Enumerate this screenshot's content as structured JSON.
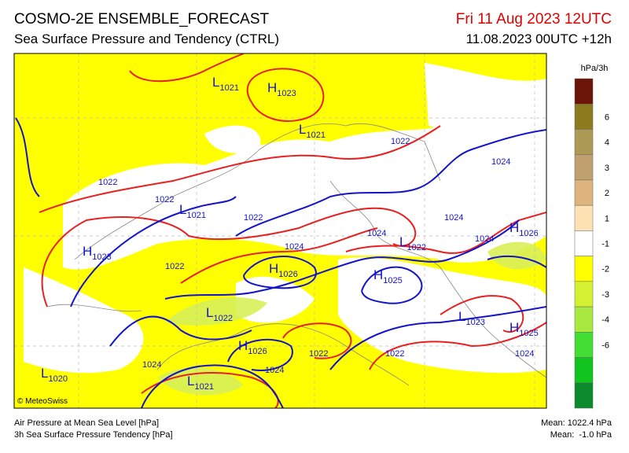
{
  "header": {
    "title": "COSMO-2E ENSEMBLE_FORECAST",
    "subtitle": "Sea Surface Pressure and Tendency (CTRL)",
    "valid_time": "Fri 11 Aug 2023 12UTC",
    "run_time": "11.08.2023 00UTC +12h"
  },
  "map": {
    "credit": "© MeteoSwiss",
    "labels": [
      {
        "symbol": "L",
        "value": "1021"
      },
      {
        "symbol": "H",
        "value": "1023"
      },
      {
        "symbol": "L",
        "value": "1021"
      },
      {
        "value": "1022"
      },
      {
        "value": "1024"
      },
      {
        "value": "1022"
      },
      {
        "value": "1022"
      },
      {
        "symbol": "L",
        "value": "1021"
      },
      {
        "value": "1022"
      },
      {
        "value": "1024"
      },
      {
        "symbol": "H",
        "value": "1026"
      },
      {
        "value": "1024"
      },
      {
        "value": "1024"
      },
      {
        "symbol": "H",
        "value": "1023"
      },
      {
        "symbol": "L",
        "value": "1022"
      },
      {
        "value": "1024"
      },
      {
        "value": "1022"
      },
      {
        "symbol": "H",
        "value": "1026"
      },
      {
        "symbol": "H",
        "value": "1025"
      },
      {
        "symbol": "L",
        "value": "1022"
      },
      {
        "symbol": "L",
        "value": "1023"
      },
      {
        "symbol": "H",
        "value": "1025"
      },
      {
        "symbol": "H",
        "value": "1026"
      },
      {
        "value": "1022"
      },
      {
        "value": "1022"
      },
      {
        "value": "1024"
      },
      {
        "value": "1024"
      },
      {
        "value": "1024"
      },
      {
        "symbol": "L",
        "value": "1020"
      },
      {
        "symbol": "L",
        "value": "1021"
      }
    ]
  },
  "legend": {
    "unit": "hPa/3h",
    "ticks": [
      6,
      4,
      3,
      2,
      1,
      -1,
      -2,
      -3,
      -4,
      -6
    ],
    "colors": [
      "#6b1408",
      "#8c7a1e",
      "#ad9a55",
      "#bfa06e",
      "#dcb47c",
      "#ffe2b4",
      "#ffffff",
      "#ffff00",
      "#d4f030",
      "#a8e840",
      "#44dd33",
      "#11c41e",
      "#0a8a2a"
    ]
  },
  "footer": {
    "left": [
      "Air Pressure at Mean Sea Level [hPa]",
      "3h Sea Surface Pressure Tendency [hPa]"
    ],
    "right": [
      "Mean: 1022.4 hPa",
      "Mean:  -1.0 hPa"
    ]
  }
}
